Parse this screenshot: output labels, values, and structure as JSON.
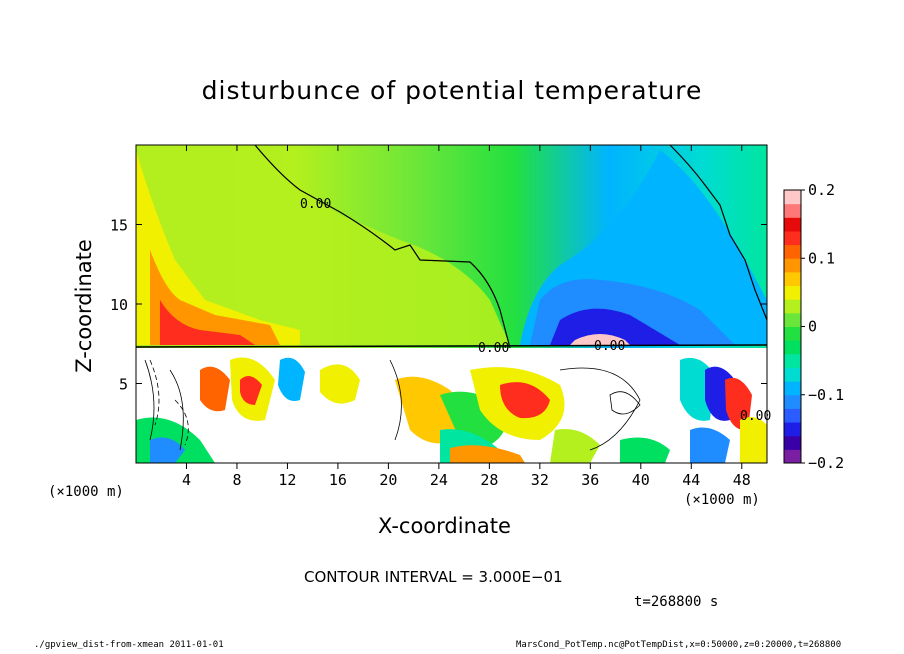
{
  "chart_data": {
    "type": "heatmap",
    "title": "disturbunce of potential temperature",
    "xlabel": "X-coordinate",
    "ylabel": "Z-coordinate",
    "x_unit_left": "(×1000 m)",
    "x_unit_right": "(×1000 m)",
    "xlim": [
      0,
      50
    ],
    "ylim": [
      0,
      20
    ],
    "x_ticks": [
      "4",
      "8",
      "12",
      "16",
      "20",
      "24",
      "28",
      "32",
      "36",
      "40",
      "44",
      "48"
    ],
    "x_tick_values": [
      4,
      8,
      12,
      16,
      20,
      24,
      28,
      32,
      36,
      40,
      44,
      48
    ],
    "y_ticks": [
      "5",
      "10",
      "15"
    ],
    "y_tick_values": [
      5,
      10,
      15
    ],
    "colorbar": {
      "range": [
        -0.2,
        0.2
      ],
      "tick_labels": [
        "0.2",
        "0.1",
        "0",
        "−0.1",
        "−0.2"
      ],
      "tick_values": [
        0.2,
        0.1,
        0,
        -0.1,
        -0.2
      ],
      "colors": [
        "#7a1fa2",
        "#3a00a8",
        "#1e1ee6",
        "#2a5cff",
        "#1f8cff",
        "#00b4ff",
        "#00dcd2",
        "#00e6a0",
        "#00e060",
        "#22e040",
        "#6ae63a",
        "#b4f01e",
        "#f0f000",
        "#ffc800",
        "#ff9600",
        "#ff6400",
        "#ff2d1e",
        "#e60a0a",
        "#ff7878",
        "#ffc8c8"
      ]
    },
    "contour_labels": [
      "0.00",
      "0.00",
      "0.00",
      "0.00"
    ],
    "contour_interval": "CONTOUR INTERVAL = 3.000E−01",
    "time_label": "t=268800 s"
  },
  "footer": {
    "left": "./gpview_dist-from-xmean  2011-01-01",
    "right": "MarsCond_PotTemp.nc@PotTempDist,x=0:50000,z=0:20000,t=268800"
  }
}
